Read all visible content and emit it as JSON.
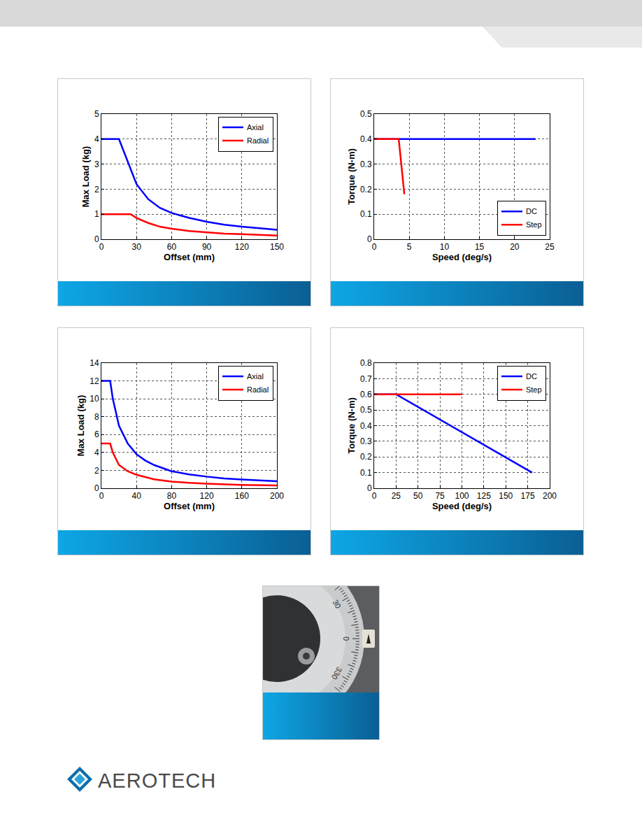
{
  "chart_data": [
    {
      "type": "line",
      "x_label": "Offset (mm)",
      "y_label": "Max Load (kg)",
      "xlim": [
        0,
        150
      ],
      "xticks": [
        0,
        30,
        60,
        90,
        120,
        150
      ],
      "ylim": [
        0,
        5
      ],
      "yticks": [
        0,
        1,
        2,
        3,
        4,
        5
      ],
      "grid": true,
      "legend": "top right",
      "series": [
        {
          "name": "Axial",
          "color": "#0000ff",
          "line_style": "solid",
          "x": [
            0,
            15,
            20,
            30,
            40,
            50,
            60,
            75,
            90,
            105,
            120,
            135,
            150
          ],
          "values": [
            4,
            4,
            3.4,
            2.2,
            1.6,
            1.25,
            1.05,
            0.85,
            0.7,
            0.58,
            0.5,
            0.45,
            0.38
          ]
        },
        {
          "name": "Radial",
          "color": "#ff0000",
          "line_style": "solid",
          "x": [
            0,
            25,
            30,
            40,
            50,
            60,
            75,
            90,
            105,
            120,
            135,
            150
          ],
          "values": [
            1,
            1,
            0.85,
            0.65,
            0.5,
            0.42,
            0.33,
            0.27,
            0.22,
            0.2,
            0.17,
            0.15
          ]
        }
      ]
    },
    {
      "type": "line",
      "x_label": "Speed (deg/s)",
      "y_label": "Torque (N-m)",
      "xlim": [
        0,
        25
      ],
      "xticks": [
        0,
        5,
        10,
        15,
        20,
        25
      ],
      "ylim": [
        0,
        0.5
      ],
      "yticks": [
        0,
        0.1,
        0.2,
        0.3,
        0.4,
        0.5
      ],
      "grid": true,
      "legend": "bottom right",
      "series": [
        {
          "name": "DC",
          "color": "#0000ff",
          "line_style": "solid",
          "x": [
            0,
            23
          ],
          "values": [
            0.4,
            0.4
          ]
        },
        {
          "name": "Step",
          "color": "#ff0000",
          "line_style": "solid",
          "x": [
            0,
            3.5,
            4.3
          ],
          "values": [
            0.4,
            0.4,
            0.18
          ]
        }
      ]
    },
    {
      "type": "line",
      "x_label": "Offset (mm)",
      "y_label": "Max Load (kg)",
      "xlim": [
        0,
        200
      ],
      "xticks": [
        0,
        40,
        80,
        120,
        160,
        200
      ],
      "ylim": [
        0,
        14
      ],
      "yticks": [
        0,
        2,
        4,
        6,
        8,
        10,
        12,
        14
      ],
      "grid": true,
      "legend": "top right",
      "series": [
        {
          "name": "Axial",
          "color": "#0000ff",
          "line_style": "solid",
          "x": [
            0,
            10,
            13,
            20,
            30,
            40,
            50,
            60,
            80,
            100,
            120,
            140,
            160,
            180,
            200
          ],
          "values": [
            12,
            12,
            10,
            7,
            5,
            3.8,
            3.1,
            2.6,
            1.9,
            1.55,
            1.3,
            1.1,
            0.98,
            0.87,
            0.78
          ]
        },
        {
          "name": "Radial",
          "color": "#ff0000",
          "line_style": "solid",
          "x": [
            0,
            10,
            13,
            20,
            30,
            40,
            60,
            80,
            100,
            120,
            160,
            200
          ],
          "values": [
            5,
            5,
            4,
            2.6,
            1.9,
            1.5,
            1.0,
            0.75,
            0.6,
            0.5,
            0.38,
            0.32
          ]
        }
      ]
    },
    {
      "type": "line",
      "x_label": "Speed (deg/s)",
      "y_label": "Torque (N-m)",
      "xlim": [
        0,
        200
      ],
      "xticks": [
        0,
        25,
        50,
        75,
        100,
        125,
        150,
        175,
        200
      ],
      "ylim": [
        0,
        0.8
      ],
      "yticks": [
        0,
        0.1,
        0.2,
        0.3,
        0.4,
        0.5,
        0.6,
        0.7,
        0.8
      ],
      "grid": true,
      "legend": "top right",
      "series": [
        {
          "name": "DC",
          "color": "#0000ff",
          "line_style": "solid",
          "x": [
            0,
            25,
            180
          ],
          "values": [
            0.6,
            0.6,
            0.1
          ]
        },
        {
          "name": "Step",
          "color": "#ff0000",
          "line_style": "solid",
          "x": [
            0,
            100
          ],
          "values": [
            0.6,
            0.6
          ]
        }
      ]
    }
  ],
  "photo": {
    "dial_labels": [
      "30",
      "0",
      "330"
    ]
  },
  "logo": {
    "text": "AEROTECH"
  }
}
